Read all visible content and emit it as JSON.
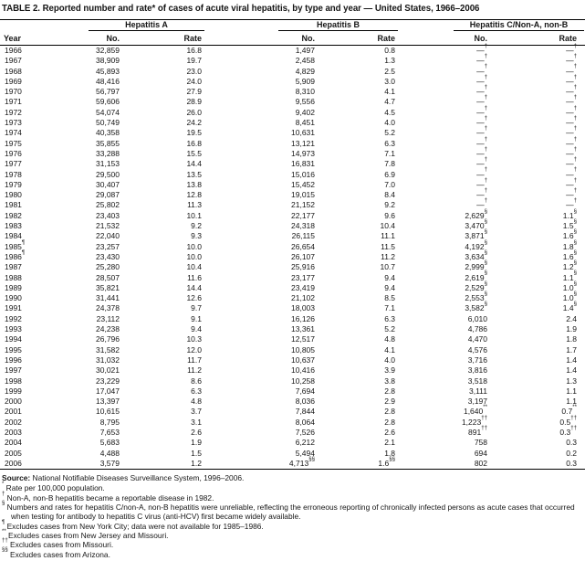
{
  "title": "TABLE 2. Reported number and rate* of cases of acute viral hepatitis, by type and year — United States, 1966–2006",
  "header": {
    "year": "Year",
    "groups": [
      {
        "label": "Hepatitis A",
        "no": "No.",
        "rate": "Rate"
      },
      {
        "label": "Hepatitis B",
        "no": "No.",
        "rate": "Rate"
      },
      {
        "label": "Hepatitis C/Non-A, non-B",
        "no": "No.",
        "rate": "Rate"
      }
    ]
  },
  "rows": [
    [
      "1966",
      "32,859",
      "16.8",
      "1,497",
      "0.8",
      "—^†",
      "—^†"
    ],
    [
      "1967",
      "38,909",
      "19.7",
      "2,458",
      "1.3",
      "—^†",
      "—^†"
    ],
    [
      "1968",
      "45,893",
      "23.0",
      "4,829",
      "2.5",
      "—^†",
      "—^†"
    ],
    [
      "1969",
      "48,416",
      "24.0",
      "5,909",
      "3.0",
      "—^†",
      "—^†"
    ],
    [
      "1970",
      "56,797",
      "27.9",
      "8,310",
      "4.1",
      "—^†",
      "—^†"
    ],
    [
      "1971",
      "59,606",
      "28.9",
      "9,556",
      "4.7",
      "—^†",
      "—^†"
    ],
    [
      "1972",
      "54,074",
      "26.0",
      "9,402",
      "4.5",
      "—^†",
      "—^†"
    ],
    [
      "1973",
      "50,749",
      "24.2",
      "8,451",
      "4.0",
      "—^†",
      "—^†"
    ],
    [
      "1974",
      "40,358",
      "19.5",
      "10,631",
      "5.2",
      "—^†",
      "—^†"
    ],
    [
      "1975",
      "35,855",
      "16.8",
      "13,121",
      "6.3",
      "—^†",
      "—^†"
    ],
    [
      "1976",
      "33,288",
      "15.5",
      "14,973",
      "7.1",
      "—^†",
      "—^†"
    ],
    [
      "1977",
      "31,153",
      "14.4",
      "16,831",
      "7.8",
      "—^†",
      "—^†"
    ],
    [
      "1978",
      "29,500",
      "13.5",
      "15,016",
      "6.9",
      "—^†",
      "—^†"
    ],
    [
      "1979",
      "30,407",
      "13.8",
      "15,452",
      "7.0",
      "—^†",
      "—^†"
    ],
    [
      "1980",
      "29,087",
      "12.8",
      "19,015",
      "8.4",
      "—^†",
      "—^†"
    ],
    [
      "1981",
      "25,802",
      "11.3",
      "21,152",
      "9.2",
      "—^†",
      "—^†"
    ],
    [
      "1982",
      "23,403",
      "10.1",
      "22,177",
      "9.6",
      "2,629^§",
      "1.1^§"
    ],
    [
      "1983",
      "21,532",
      "9.2",
      "24,318",
      "10.4",
      "3,470^§",
      "1.5^§"
    ],
    [
      "1984",
      "22,040",
      "9.3",
      "26,115",
      "11.1",
      "3,871^§",
      "1.6^§"
    ],
    [
      "1985^¶",
      "23,257",
      "10.0",
      "26,654",
      "11.5",
      "4,192^§",
      "1.8^§"
    ],
    [
      "1986^¶",
      "23,430",
      "10.0",
      "26,107",
      "11.2",
      "3,634^§",
      "1.6^§"
    ],
    [
      "1987",
      "25,280",
      "10.4",
      "25,916",
      "10.7",
      "2,999^§",
      "1.2^§"
    ],
    [
      "1988",
      "28,507",
      "11.6",
      "23,177",
      "9.4",
      "2,619^§",
      "1.1^§"
    ],
    [
      "1989",
      "35,821",
      "14.4",
      "23,419",
      "9.4",
      "2,529^§",
      "1.0^§"
    ],
    [
      "1990",
      "31,441",
      "12.6",
      "21,102",
      "8.5",
      "2,553^§",
      "1.0^§"
    ],
    [
      "1991",
      "24,378",
      "9.7",
      "18,003",
      "7.1",
      "3,582^§",
      "1.4^§"
    ],
    [
      "1992",
      "23,112",
      "9.1",
      "16,126",
      "6.3",
      "6,010",
      "2.4"
    ],
    [
      "1993",
      "24,238",
      "9.4",
      "13,361",
      "5.2",
      "4,786",
      "1.9"
    ],
    [
      "1994",
      "26,796",
      "10.3",
      "12,517",
      "4.8",
      "4,470",
      "1.8"
    ],
    [
      "1995",
      "31,582",
      "12.0",
      "10,805",
      "4.1",
      "4,576",
      "1.7"
    ],
    [
      "1996",
      "31,032",
      "11.7",
      "10,637",
      "4.0",
      "3,716",
      "1.4"
    ],
    [
      "1997",
      "30,021",
      "11.2",
      "10,416",
      "3.9",
      "3,816",
      "1.4"
    ],
    [
      "1998",
      "23,229",
      "8.6",
      "10,258",
      "3.8",
      "3,518",
      "1.3"
    ],
    [
      "1999",
      "17,047",
      "6.3",
      "7,694",
      "2.8",
      "3,111",
      "1.1"
    ],
    [
      "2000",
      "13,397",
      "4.8",
      "8,036",
      "2.9",
      "3,197",
      "1.1"
    ],
    [
      "2001",
      "10,615",
      "3.7",
      "7,844",
      "2.8",
      "1,640^**",
      "0.7^**"
    ],
    [
      "2002",
      "8,795",
      "3.1",
      "8,064",
      "2.8",
      "1,223^††",
      "0.5^††"
    ],
    [
      "2003",
      "7,653",
      "2.6",
      "7,526",
      "2.6",
      "891^††",
      "0.3^††"
    ],
    [
      "2004",
      "5,683",
      "1.9",
      "6,212",
      "2.1",
      "758",
      "0.3"
    ],
    [
      "2005",
      "4,488",
      "1.5",
      "5,494",
      "1.8",
      "694",
      "0.2"
    ],
    [
      "2006",
      "3,579",
      "1.2",
      "4,713^§§",
      "1.6^§§",
      "802",
      "0.3"
    ]
  ],
  "footnotes": {
    "source_label": "Source:",
    "source_text": "National Notifiable Diseases Surveillance System, 1996–2006.",
    "notes": [
      {
        "marker": "*",
        "text": "Rate per 100,000 population."
      },
      {
        "marker": "†",
        "text": "Non-A, non-B hepatitis became a reportable disease in 1982."
      },
      {
        "marker": "§",
        "text": "Numbers and rates for hepatitis C/non-A, non-B hepatitis were unreliable, reflecting the erroneous reporting of chronically infected persons as acute cases that occurred when testing for antibody to hepatitis C virus (anti-HCV) first became widely available."
      },
      {
        "marker": "¶",
        "text": "Excludes cases from New York City; data were not available for 1985–1986."
      },
      {
        "marker": "**",
        "text": "Excludes cases from New Jersey and Missouri."
      },
      {
        "marker": "††",
        "text": "Excludes cases from Missouri."
      },
      {
        "marker": "§§",
        "text": "Excludes cases from Arizona."
      }
    ]
  }
}
